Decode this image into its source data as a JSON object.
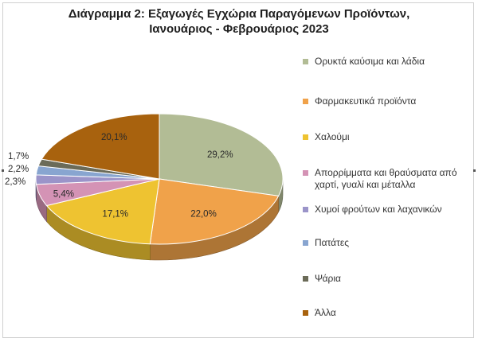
{
  "title": {
    "line1": "Διάγραμμα 2: Εξαγωγές Εγχώρια Παραγόμενων Προϊόντων,",
    "line2": "Ιανουάριος - Φεβρουάριος 2023"
  },
  "chart_data": {
    "type": "pie",
    "title": "Διάγραμμα 2: Εξαγωγές Εγχώρια Παραγόμενων Προϊόντων, Ιανουάριος - Φεβρουάριος 2023",
    "three_d": true,
    "legend_position": "right",
    "slices": [
      {
        "label": "Ορυκτά καύσιμα και λάδια",
        "value": 29.2,
        "display": "29,2%",
        "color": "#b2bc95"
      },
      {
        "label": "Φαρμακευτικά προϊόντα",
        "value": 22.0,
        "display": "22,0%",
        "color": "#f0a24a"
      },
      {
        "label": "Χαλούμι",
        "value": 17.1,
        "display": "17,1%",
        "color": "#eec331"
      },
      {
        "label": "Απορρίμματα και θραύσματα από χαρτί, γυαλί και μέταλλα",
        "value": 5.4,
        "display": "5,4%",
        "color": "#d493b5"
      },
      {
        "label": "Χυμοί φρούτων και λαχανικών",
        "value": 2.3,
        "display": "2,3%",
        "color": "#9b94c9"
      },
      {
        "label": "Πατάτες",
        "value": 2.2,
        "display": "2,2%",
        "color": "#88a5d0"
      },
      {
        "label": "Ψάρια",
        "value": 1.7,
        "display": "1,7%",
        "color": "#6b6b58"
      },
      {
        "label": "Άλλα",
        "value": 20.1,
        "display": "20,1%",
        "color": "#a8620e"
      }
    ]
  }
}
